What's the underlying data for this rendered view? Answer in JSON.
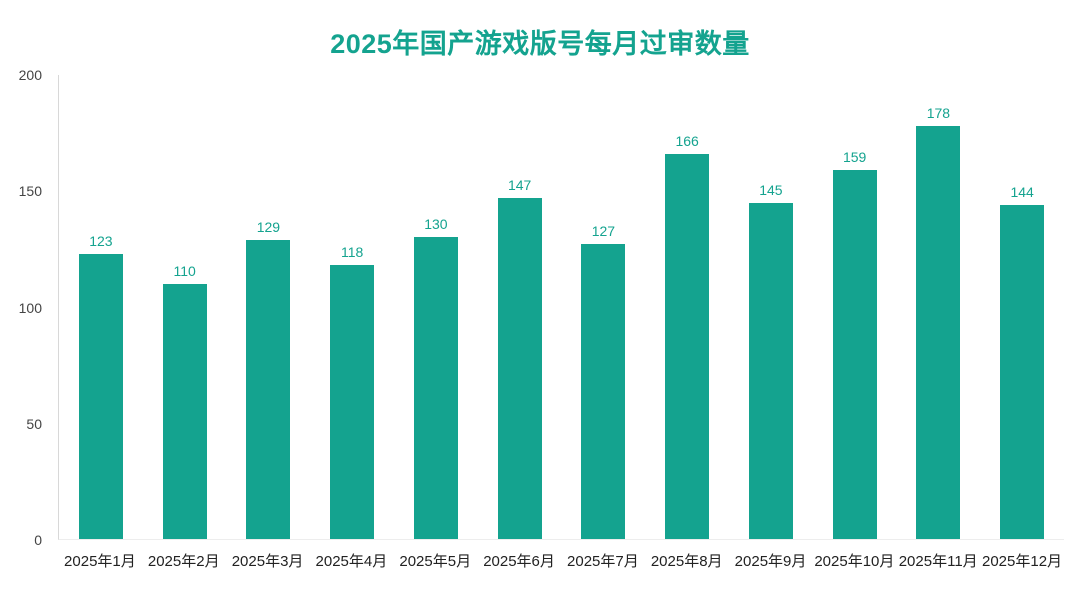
{
  "chart_data": {
    "type": "bar",
    "title": "2025年国产游戏版号每月过审数量",
    "categories": [
      "2025年1月",
      "2025年2月",
      "2025年3月",
      "2025年4月",
      "2025年5月",
      "2025年6月",
      "2025年7月",
      "2025年8月",
      "2025年9月",
      "2025年10月",
      "2025年11月",
      "2025年12月"
    ],
    "values": [
      123,
      110,
      129,
      118,
      130,
      147,
      127,
      166,
      145,
      159,
      178,
      144
    ],
    "xlabel": "",
    "ylabel": "",
    "ylim": [
      0,
      200
    ],
    "yticks": [
      0,
      50,
      100,
      150,
      200
    ],
    "grid": false,
    "legend": "none",
    "bar_color": "#14a38f",
    "value_label_color": "#14a38f",
    "title_color": "#14a38f",
    "axis_line_color": "#d8d8d8",
    "axis_text_color": "#222222"
  }
}
